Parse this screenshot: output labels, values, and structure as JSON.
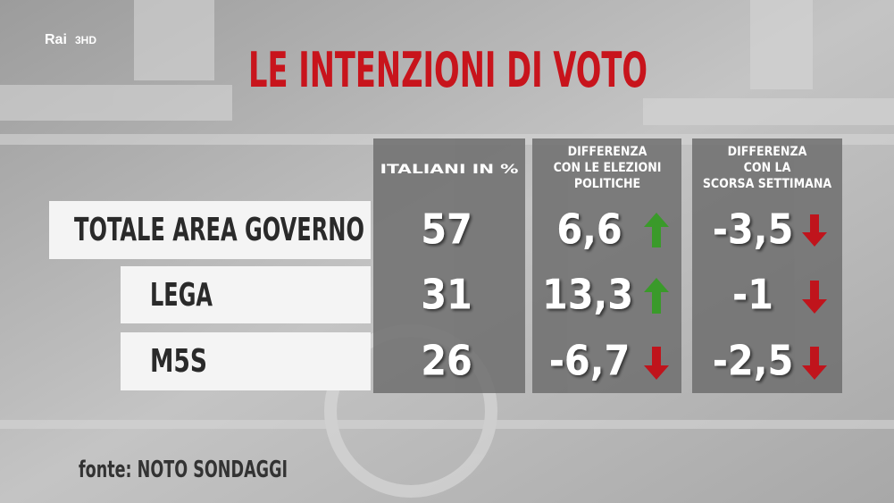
{
  "logo": {
    "brand": "Rai",
    "channel": "3HD"
  },
  "title": "LE INTENZIONI DI VOTO",
  "table": {
    "columns": [
      [
        "ITALIANI IN %"
      ],
      [
        "DIFFERENZA",
        "CON LE ELEZIONI",
        "POLITICHE"
      ],
      [
        "DIFFERENZA",
        "CON  LA",
        "SCORSA SETTIMANA"
      ]
    ],
    "rows": [
      [
        "TOTALE AREA GOVERNO",
        "57",
        "6,6",
        "-3,5"
      ],
      [
        "LEGA",
        "31",
        "13,3",
        "-1"
      ],
      [
        "M5S",
        "26",
        "-6,7",
        "-2,5"
      ]
    ]
  },
  "source": "fonte: NOTO SONDAGGI"
}
